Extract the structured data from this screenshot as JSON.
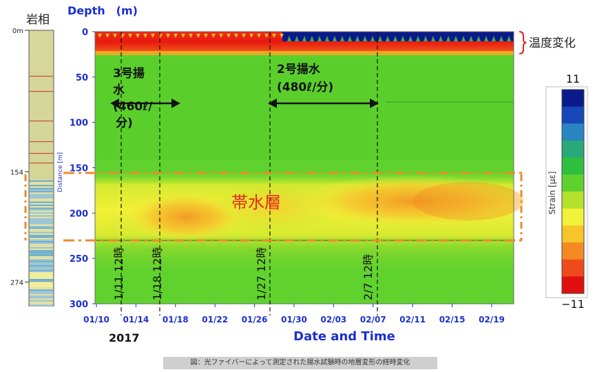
{
  "lithology": {
    "title": "岩相",
    "depth_labels": [
      {
        "label": "0m",
        "depth": 0
      },
      {
        "label": "154",
        "depth": 154
      },
      {
        "label": "274",
        "depth": 274
      }
    ]
  },
  "main_chart": {
    "y_axis_title": "Depth　(m)",
    "distance_label": "Distance [m]",
    "x_axis_title": "Date and Time",
    "year_label": "2017",
    "temperature_annotation": "温度変化",
    "aquifer_label": "帯水層",
    "pump3_label_lines": [
      "3号揚",
      "水",
      "(460ℓ/",
      "分)"
    ],
    "pump2_label_lines": [
      "2号揚水",
      "(480ℓ/分)"
    ],
    "event_labels": [
      "1/11 12時",
      "1/18 12時",
      "1/27 12時",
      "2/7 12時"
    ]
  },
  "colorbar": {
    "title": "Strain [με]",
    "max_label": "11",
    "min_label": "−11",
    "colors": [
      "#0b1a8a",
      "#1848b8",
      "#2a86c0",
      "#29a87a",
      "#2fbf3e",
      "#5fd12e",
      "#b4e02e",
      "#f2f23a",
      "#f7c42a",
      "#f48a22",
      "#ef4a1c",
      "#e01010"
    ]
  },
  "caption": "図：光ファイバーによって測定された揚水試験時の地層変形の経時変化",
  "chart_data": {
    "type": "heatmap",
    "title": "",
    "xlabel": "Date and Time",
    "ylabel": "Depth (m)",
    "x_tick_labels": [
      "01/10",
      "01/14",
      "01/18",
      "01/22",
      "01/26",
      "01/30",
      "02/03",
      "02/07",
      "02/11",
      "02/15",
      "02/19"
    ],
    "y_ticks": [
      0,
      50,
      100,
      150,
      200,
      250,
      300
    ],
    "ylim": [
      300,
      0
    ],
    "colorbar_range": [
      -11,
      11
    ],
    "colorbar_unit": "Strain [με]",
    "event_dates": [
      "1/11 12時",
      "1/18 12時",
      "1/27 12時",
      "2/7 12時"
    ],
    "aquifer_depth_range_m": [
      154,
      228
    ],
    "pumping_periods": [
      {
        "name": "3号揚水",
        "rate": "460ℓ/分",
        "start": "1/11 12時",
        "end": "1/18 12時"
      },
      {
        "name": "2号揚水",
        "rate": "480ℓ/分",
        "start": "1/27 12時",
        "end": "2/7 12時"
      }
    ],
    "temperature_change_zone": "温度変化"
  }
}
